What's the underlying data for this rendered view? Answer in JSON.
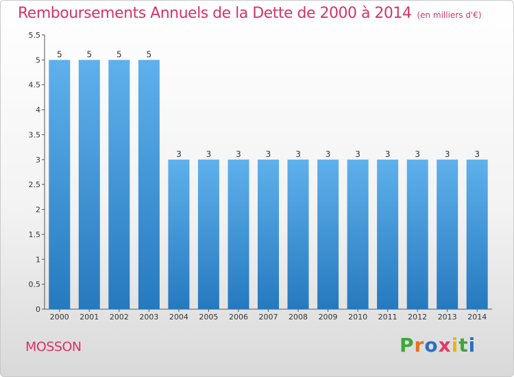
{
  "chart_data": {
    "type": "bar",
    "title": "Remboursements Annuels de la Dette de 2000 à 2014",
    "subtitle": "(en milliers d'€)",
    "categories": [
      "2000",
      "2001",
      "2002",
      "2003",
      "2004",
      "2005",
      "2006",
      "2007",
      "2008",
      "2009",
      "2010",
      "2011",
      "2012",
      "2013",
      "2014"
    ],
    "values": [
      5,
      5,
      5,
      5,
      3,
      3,
      3,
      3,
      3,
      3,
      3,
      3,
      3,
      3,
      3
    ],
    "ylim": [
      0,
      5.5
    ],
    "yticks": [
      "0",
      "0.5",
      "1",
      "1.5",
      "2",
      "2.5",
      "3",
      "3.5",
      "4",
      "4.5",
      "5",
      "5.5"
    ],
    "xlabel": "",
    "ylabel": "",
    "grid": false,
    "bar_color": "#3d8fd6"
  },
  "footer": {
    "commune": "MOSSON",
    "brand": "Proxiti"
  },
  "colors": {
    "title": "#d5336a",
    "brand_letters": [
      "#3fa63a",
      "#e8701f",
      "#2c6fc4",
      "#e03a6a",
      "#e8b416",
      "#3fa63a",
      "#2c6fc4"
    ]
  }
}
